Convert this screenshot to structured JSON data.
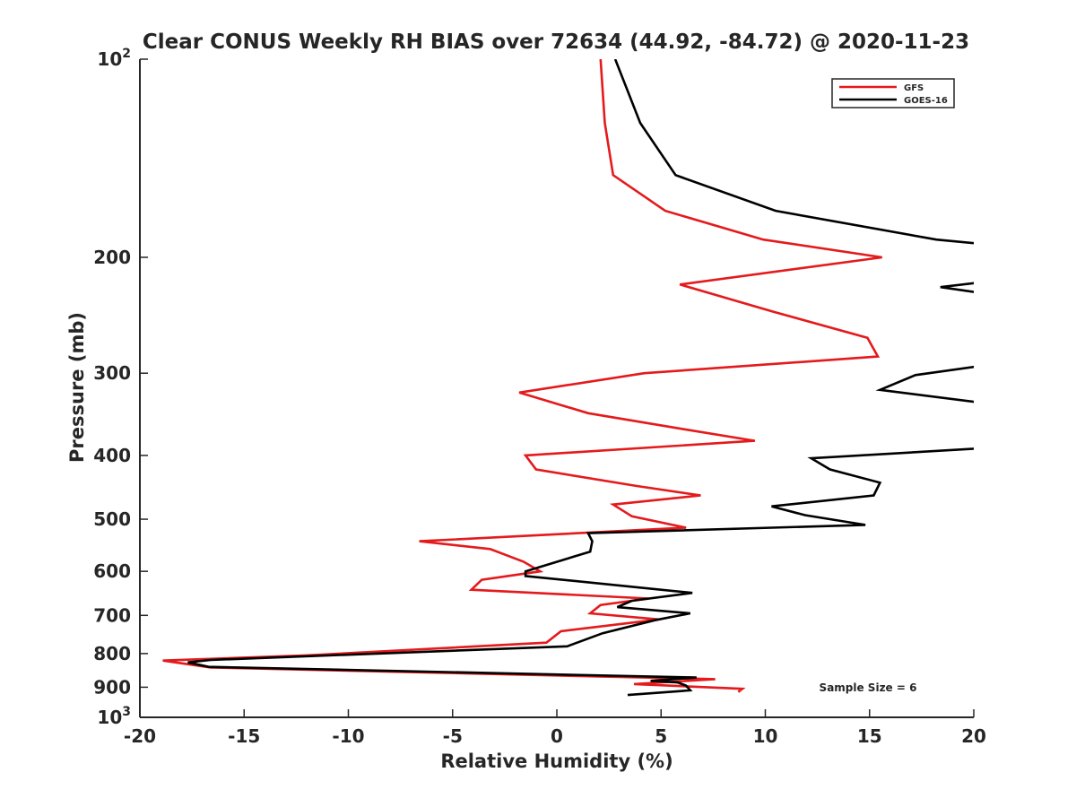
{
  "chart_data": {
    "type": "line",
    "title": "Clear CONUS Weekly RH BIAS over 72634 (44.92, -84.72) @ 2020-11-23",
    "xlabel": "Relative Humidity (%)",
    "ylabel": "Pressure (mb)",
    "xlim": [
      -20,
      20
    ],
    "ylim": [
      100,
      1000
    ],
    "y_scale": "log",
    "y_reversed": true,
    "x_ticks": [
      -20,
      -15,
      -10,
      -5,
      0,
      5,
      10,
      15,
      20
    ],
    "x_tick_labels": [
      "-20",
      "-15",
      "-10",
      "-5",
      "0",
      "5",
      "10",
      "15",
      "20"
    ],
    "y_ticks": [
      100,
      200,
      300,
      400,
      500,
      600,
      700,
      800,
      900,
      1000
    ],
    "y_tick_labels": [
      {
        "base": "10",
        "exp": "2"
      },
      {
        "base": "200",
        "exp": ""
      },
      {
        "base": "300",
        "exp": ""
      },
      {
        "base": "400",
        "exp": ""
      },
      {
        "base": "500",
        "exp": ""
      },
      {
        "base": "600",
        "exp": ""
      },
      {
        "base": "700",
        "exp": ""
      },
      {
        "base": "800",
        "exp": ""
      },
      {
        "base": "900",
        "exp": ""
      },
      {
        "base": "10",
        "exp": "3"
      }
    ],
    "grid": false,
    "legend_position": "top-right",
    "annotation": "Sample Size = 6",
    "series": [
      {
        "name": "GFS",
        "color": "#e41a1c",
        "points": [
          [
            2.1,
            100
          ],
          [
            2.3,
            125
          ],
          [
            2.7,
            150
          ],
          [
            5.2,
            170
          ],
          [
            9.9,
            188
          ],
          [
            15.6,
            200
          ],
          [
            5.9,
            220
          ],
          [
            10.4,
            242
          ],
          [
            14.9,
            265
          ],
          [
            15.4,
            283
          ],
          [
            4.2,
            300
          ],
          [
            -1.8,
            321
          ],
          [
            1.5,
            345
          ],
          [
            6.1,
            365
          ],
          [
            9.5,
            380
          ],
          [
            -1.5,
            400
          ],
          [
            -1.0,
            420
          ],
          [
            3.8,
            445
          ],
          [
            6.9,
            460
          ],
          [
            2.7,
            475
          ],
          [
            3.6,
            495
          ],
          [
            6.2,
            515
          ],
          [
            -6.6,
            540
          ],
          [
            -3.2,
            555
          ],
          [
            -1.6,
            580
          ],
          [
            -0.8,
            600
          ],
          [
            -3.6,
            618
          ],
          [
            -4.1,
            640
          ],
          [
            4.4,
            660
          ],
          [
            2.1,
            675
          ],
          [
            1.6,
            695
          ],
          [
            4.9,
            710
          ],
          [
            0.2,
            740
          ],
          [
            -0.5,
            770
          ],
          [
            -12.0,
            805
          ],
          [
            -18.9,
            820
          ],
          [
            -16.6,
            840
          ],
          [
            7.6,
            875
          ],
          [
            3.7,
            890
          ],
          [
            8.9,
            905
          ],
          [
            8.7,
            915
          ]
        ]
      },
      {
        "name": "GOES-16",
        "color": "#000000",
        "points": [
          [
            2.8,
            100
          ],
          [
            4.0,
            125
          ],
          [
            5.7,
            150
          ],
          [
            10.5,
            170
          ],
          [
            18.2,
            188
          ],
          [
            20.5,
            191
          ],
          [
            null,
            null
          ],
          [
            20.5,
            218
          ],
          [
            18.4,
            222
          ],
          [
            20.5,
            227
          ],
          [
            null,
            null
          ],
          [
            20.5,
            292
          ],
          [
            17.2,
            302
          ],
          [
            15.5,
            318
          ],
          [
            20.5,
            333
          ],
          [
            null,
            null
          ],
          [
            20.5,
            390
          ],
          [
            12.2,
            404
          ],
          [
            13.1,
            420
          ],
          [
            15.5,
            440
          ],
          [
            15.2,
            460
          ],
          [
            10.3,
            478
          ],
          [
            11.9,
            493
          ],
          [
            14.8,
            510
          ],
          [
            1.5,
            525
          ],
          [
            1.7,
            540
          ],
          [
            1.6,
            560
          ],
          [
            -1.5,
            600
          ],
          [
            -1.5,
            610
          ],
          [
            6.5,
            647
          ],
          [
            3.6,
            665
          ],
          [
            2.9,
            680
          ],
          [
            6.4,
            695
          ],
          [
            4.7,
            712
          ],
          [
            2.2,
            745
          ],
          [
            0.5,
            780
          ],
          [
            -16.6,
            818
          ],
          [
            -17.7,
            825
          ],
          [
            -16.7,
            838
          ],
          [
            6.7,
            870
          ],
          [
            4.5,
            880
          ],
          [
            5.8,
            885
          ],
          [
            6.2,
            895
          ],
          [
            6.4,
            910
          ],
          [
            3.4,
            925
          ]
        ]
      }
    ]
  }
}
